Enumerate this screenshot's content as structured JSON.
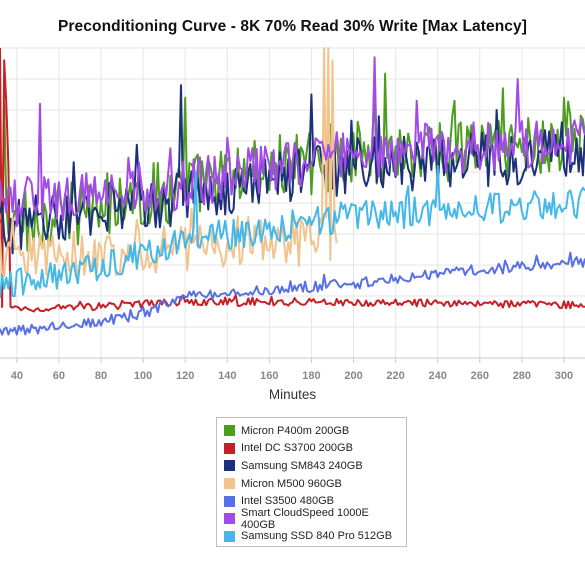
{
  "chart_data": {
    "type": "line",
    "title": "Preconditioning Curve - 8K 70% Read 30% Write [Max Latency]",
    "subtitle": "",
    "xlabel": "Minutes",
    "ylabel": "",
    "xlim": [
      32,
      310
    ],
    "ylim": [
      0,
      100
    ],
    "x_ticks": [
      40,
      60,
      80,
      100,
      120,
      140,
      160,
      180,
      200,
      220,
      240,
      260,
      280,
      300
    ],
    "y_ticks": [],
    "grid": true,
    "legend_position": "bottom",
    "x_start": 32,
    "x_step": 1,
    "series": [
      {
        "name": "Micron P400m 200GB",
        "color": "#4d9e1f",
        "base": [
          [
            32,
            42
          ],
          [
            120,
            55
          ],
          [
            200,
            66
          ],
          [
            310,
            70
          ]
        ],
        "noise": 11,
        "spikes": [
          [
            34,
            82
          ],
          [
            120,
            84
          ],
          [
            210,
            85
          ],
          [
            248,
            83
          ],
          [
            271,
            87
          ],
          [
            300,
            84
          ]
        ]
      },
      {
        "name": "Intel DC S3700 200GB",
        "color": "#c62026",
        "base": [
          [
            32,
            16
          ],
          [
            60,
            16
          ],
          [
            120,
            18
          ],
          [
            200,
            18
          ],
          [
            310,
            17
          ]
        ],
        "noise": 1.2,
        "spikes": [
          [
            32,
            100
          ],
          [
            34,
            96
          ],
          [
            35,
            82
          ],
          [
            36,
            62
          ]
        ]
      },
      {
        "name": "Samsung SM843 240GB",
        "color": "#1c2f7a",
        "base": [
          [
            32,
            42
          ],
          [
            120,
            52
          ],
          [
            200,
            62
          ],
          [
            310,
            66
          ]
        ],
        "noise": 9,
        "spikes": [
          [
            118,
            88
          ],
          [
            180,
            85
          ],
          [
            212,
            78
          ],
          [
            268,
            80
          ]
        ]
      },
      {
        "name": "Micron M500 960GB",
        "color": "#f2c38c",
        "base": [
          [
            32,
            33
          ],
          [
            90,
            34
          ],
          [
            120,
            36
          ],
          [
            190,
            38
          ]
        ],
        "noise": 8,
        "spikes": [
          [
            186,
            100
          ],
          [
            188,
            100
          ],
          [
            190,
            96
          ]
        ],
        "end": 192
      },
      {
        "name": "Intel S3500 480GB",
        "color": "#5870e6",
        "base": [
          [
            32,
            8
          ],
          [
            100,
            14
          ],
          [
            120,
            20
          ],
          [
            200,
            24
          ],
          [
            250,
            28
          ],
          [
            310,
            31
          ]
        ],
        "noise": 1.8,
        "spikes": []
      },
      {
        "name": "Smart CloudSpeed 1000E 400GB",
        "color": "#a24be8",
        "base": [
          [
            32,
            50
          ],
          [
            120,
            56
          ],
          [
            200,
            66
          ],
          [
            310,
            70
          ]
        ],
        "noise": 8,
        "spikes": [
          [
            51,
            82
          ],
          [
            210,
            97
          ],
          [
            278,
            90
          ],
          [
            230,
            83
          ]
        ]
      },
      {
        "name": "Samsung SSD 840 Pro 512GB",
        "color": "#44b8e8",
        "base": [
          [
            32,
            24
          ],
          [
            60,
            26
          ],
          [
            120,
            38
          ],
          [
            200,
            46
          ],
          [
            310,
            50
          ]
        ],
        "noise": 5,
        "spikes": [
          [
            125,
            60
          ],
          [
            240,
            62
          ]
        ]
      }
    ]
  }
}
